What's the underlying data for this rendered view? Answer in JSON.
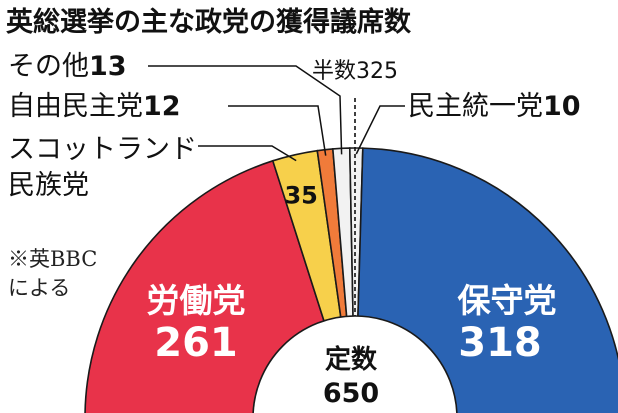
{
  "chart_data": {
    "type": "pie",
    "title": "英総選挙の主な政党の獲得議席数",
    "total_label": "定数",
    "total_seats": 650,
    "majority_label": "半数",
    "majority_seats": 325,
    "source_note": [
      "※英BBC",
      "による"
    ],
    "slices": [
      {
        "name": "労働党",
        "value": 261,
        "color": "#e8334a"
      },
      {
        "name": "スコットランド民族党",
        "label_lines": [
          "スコットランド",
          "民族党"
        ],
        "value": 35,
        "color": "#f7d04b"
      },
      {
        "name": "自由民主党",
        "value": 12,
        "color": "#f08a3c"
      },
      {
        "name": "その他",
        "value": 13,
        "color": "#f2f2f2"
      },
      {
        "name": "民主統一党",
        "value": 10,
        "color": "#f2f2f2"
      },
      {
        "name": "保守党",
        "value": 318,
        "color": "#2a63b3"
      }
    ]
  }
}
